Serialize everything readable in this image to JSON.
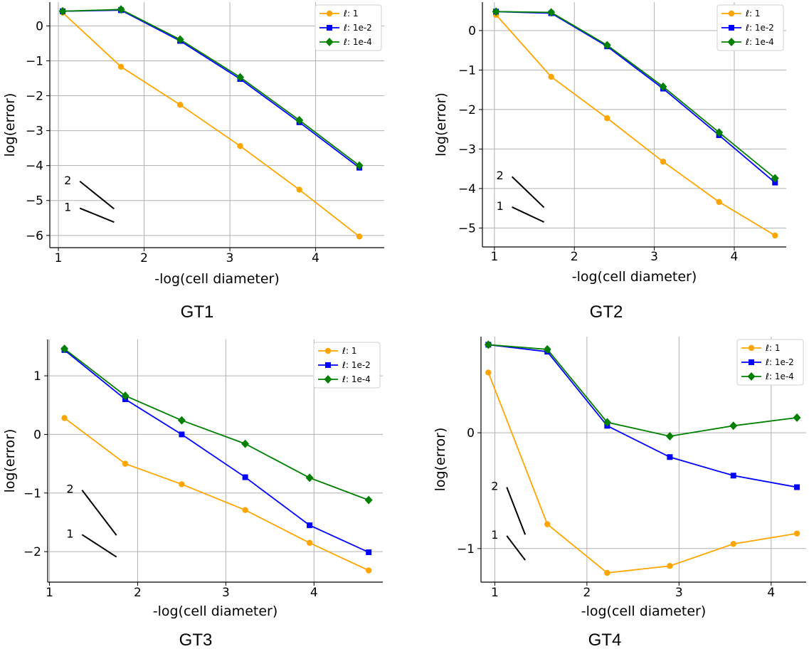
{
  "figure": {
    "colors": {
      "orange": "#FFA500",
      "blue": "#0000FF",
      "green": "#008000",
      "grid": "#b0b0b0",
      "axis": "#000000"
    }
  },
  "chart_data": [
    {
      "caption": "GT1",
      "type": "line",
      "xlabel": "-log(cell diameter)",
      "ylabel": "log(error)",
      "xlim": [
        0.9,
        4.8
      ],
      "ylim": [
        -6.35,
        0.68
      ],
      "xticks": [
        1,
        2,
        3,
        4
      ],
      "yticks": [
        0,
        -1,
        -2,
        -3,
        -4,
        -5,
        -6
      ],
      "grid": true,
      "legend": "top-right",
      "x": [
        1.05,
        1.73,
        2.42,
        3.12,
        3.81,
        4.51
      ],
      "series": [
        {
          "name": "ℓ: 1",
          "color": "#FFA500",
          "marker": "circle",
          "values": [
            0.38,
            -1.17,
            -2.26,
            -3.44,
            -4.69,
            -6.03
          ]
        },
        {
          "name": "ℓ: 1e-2",
          "color": "#0000FF",
          "marker": "square",
          "values": [
            0.42,
            0.45,
            -0.43,
            -1.52,
            -2.76,
            -4.06
          ]
        },
        {
          "name": "ℓ: 1e-4",
          "color": "#008000",
          "marker": "diamond",
          "values": [
            0.42,
            0.47,
            -0.39,
            -1.47,
            -2.7,
            -4.0
          ]
        }
      ],
      "slope_labels": [
        "2",
        "1"
      ],
      "slope_marks": [
        {
          "label": "2",
          "x1": 1.25,
          "y1": -4.45,
          "x2": 1.65,
          "y2": -5.24
        },
        {
          "label": "1",
          "x1": 1.25,
          "y1": -5.22,
          "x2": 1.65,
          "y2": -5.62
        }
      ]
    },
    {
      "caption": "GT2",
      "type": "line",
      "xlabel": "-log(cell diameter)",
      "ylabel": "log(error)",
      "xlim": [
        0.85,
        4.65
      ],
      "ylim": [
        -5.48,
        0.72
      ],
      "xticks": [
        1,
        2,
        3,
        4
      ],
      "yticks": [
        0,
        -1,
        -2,
        -3,
        -4,
        -5
      ],
      "grid": true,
      "legend": "top-right",
      "x": [
        1.02,
        1.71,
        2.41,
        3.11,
        3.81,
        4.51
      ],
      "series": [
        {
          "name": "ℓ: 1",
          "color": "#FFA500",
          "marker": "circle",
          "values": [
            0.4,
            -1.17,
            -2.22,
            -3.32,
            -4.34,
            -5.19
          ]
        },
        {
          "name": "ℓ: 1e-2",
          "color": "#0000FF",
          "marker": "square",
          "values": [
            0.48,
            0.44,
            -0.4,
            -1.47,
            -2.65,
            -3.85
          ]
        },
        {
          "name": "ℓ: 1e-4",
          "color": "#008000",
          "marker": "diamond",
          "values": [
            0.48,
            0.46,
            -0.37,
            -1.42,
            -2.58,
            -3.74
          ]
        }
      ],
      "slope_labels": [
        "2",
        "1"
      ],
      "slope_marks": [
        {
          "label": "2",
          "x1": 1.22,
          "y1": -3.7,
          "x2": 1.62,
          "y2": -4.48
        },
        {
          "label": "1",
          "x1": 1.22,
          "y1": -4.47,
          "x2": 1.62,
          "y2": -4.85
        }
      ]
    },
    {
      "caption": "GT3",
      "type": "line",
      "xlabel": "-log(cell diameter)",
      "ylabel": "log(error)",
      "xlim": [
        0.98,
        4.78
      ],
      "ylim": [
        -2.52,
        1.62
      ],
      "xticks": [
        1,
        2,
        3,
        4
      ],
      "yticks": [
        1,
        0,
        -1,
        -2
      ],
      "grid": true,
      "legend": "top-right",
      "x": [
        1.17,
        1.86,
        2.5,
        3.22,
        3.95,
        4.62
      ],
      "series": [
        {
          "name": "ℓ: 1",
          "color": "#FFA500",
          "marker": "circle",
          "values": [
            0.28,
            -0.5,
            -0.85,
            -1.29,
            -1.85,
            -2.32
          ]
        },
        {
          "name": "ℓ: 1e-2",
          "color": "#0000FF",
          "marker": "square",
          "values": [
            1.44,
            0.6,
            0.0,
            -0.73,
            -1.55,
            -2.01
          ]
        },
        {
          "name": "ℓ: 1e-4",
          "color": "#008000",
          "marker": "diamond",
          "values": [
            1.46,
            0.66,
            0.24,
            -0.16,
            -0.74,
            -1.12
          ]
        }
      ],
      "slope_labels": [
        "2",
        "1"
      ],
      "slope_marks": [
        {
          "label": "2",
          "x1": 1.37,
          "y1": -0.95,
          "x2": 1.76,
          "y2": -1.72
        },
        {
          "label": "1",
          "x1": 1.37,
          "y1": -1.71,
          "x2": 1.76,
          "y2": -2.09
        }
      ]
    },
    {
      "caption": "GT4",
      "type": "line",
      "xlabel": "-log(cell diameter)",
      "ylabel": "log(error)",
      "xlim": [
        0.85,
        4.38
      ],
      "ylim": [
        -1.29,
        0.83
      ],
      "xticks": [
        1,
        2,
        3,
        4
      ],
      "yticks": [
        0,
        -1
      ],
      "grid": true,
      "legend": "top-right",
      "x": [
        0.93,
        1.57,
        2.22,
        2.9,
        3.59,
        4.28
      ],
      "series": [
        {
          "name": "ℓ: 1",
          "color": "#FFA500",
          "marker": "circle",
          "values": [
            0.52,
            -0.79,
            -1.21,
            -1.15,
            -0.96,
            -0.87
          ]
        },
        {
          "name": "ℓ: 1e-2",
          "color": "#0000FF",
          "marker": "square",
          "values": [
            0.76,
            0.7,
            0.06,
            -0.21,
            -0.37,
            -0.47
          ]
        },
        {
          "name": "ℓ: 1e-4",
          "color": "#008000",
          "marker": "diamond",
          "values": [
            0.76,
            0.72,
            0.09,
            -0.03,
            0.06,
            0.13
          ]
        }
      ],
      "slope_labels": [
        "2",
        "1"
      ],
      "slope_marks": [
        {
          "label": "2",
          "x1": 1.13,
          "y1": -0.47,
          "x2": 1.33,
          "y2": -0.88
        },
        {
          "label": "1",
          "x1": 1.13,
          "y1": -0.89,
          "x2": 1.33,
          "y2": -1.1
        }
      ]
    }
  ]
}
